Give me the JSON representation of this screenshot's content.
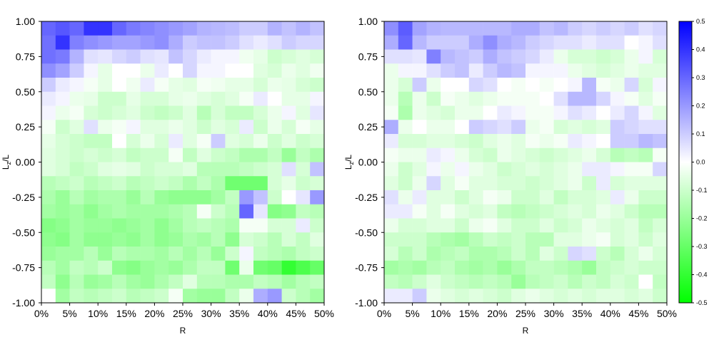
{
  "chart_data": {
    "type": "heatmap",
    "panels": [
      {
        "name": "left",
        "xlabel": "R",
        "ylabel": "L_z/L",
        "xlim": [
          0,
          0.5
        ],
        "ylim": [
          -1,
          1
        ],
        "x_tick_labels": [
          "0%",
          "5%",
          "10%",
          "15%",
          "20%",
          "25%",
          "30%",
          "35%",
          "40%",
          "45%",
          "50%"
        ],
        "y_tick_labels": [
          "1.00",
          "0.75",
          "0.50",
          "0.25",
          "0.00",
          "-0.25",
          "-0.50",
          "-0.75",
          "-1.00"
        ],
        "grid_shape": [
          20,
          20
        ],
        "row_order": "top-to-bottom, L_z/L from 1.00 to -1.00",
        "values": [
          [
            0.3,
            0.33,
            0.3,
            0.4,
            0.4,
            0.3,
            0.26,
            0.24,
            0.22,
            0.2,
            0.18,
            0.15,
            0.14,
            0.13,
            0.1,
            0.1,
            0.15,
            0.12,
            0.15,
            0.12
          ],
          [
            0.28,
            0.4,
            0.25,
            0.22,
            0.2,
            0.18,
            0.18,
            0.2,
            0.22,
            0.16,
            0.1,
            0.12,
            0.12,
            0.1,
            0.06,
            0.04,
            0.06,
            0.1,
            0.08,
            0.08
          ],
          [
            0.28,
            0.26,
            0.15,
            0.06,
            0.05,
            0.08,
            0.1,
            0.06,
            0.05,
            0.12,
            0.08,
            0.04,
            0.02,
            0.02,
            -0.03,
            -0.05,
            -0.1,
            -0.08,
            -0.06,
            -0.08
          ],
          [
            0.22,
            0.18,
            0.1,
            0.02,
            -0.05,
            0.0,
            0.0,
            -0.04,
            0.04,
            0.0,
            0.08,
            0.02,
            0.02,
            0.0,
            0.0,
            -0.06,
            -0.08,
            -0.04,
            -0.06,
            -0.03
          ],
          [
            0.1,
            0.04,
            0.02,
            -0.02,
            -0.05,
            0.0,
            -0.03,
            0.04,
            -0.02,
            -0.05,
            -0.06,
            -0.02,
            -0.03,
            -0.05,
            -0.05,
            -0.08,
            -0.04,
            -0.05,
            -0.08,
            -0.1
          ],
          [
            0.04,
            0.02,
            -0.04,
            -0.05,
            -0.1,
            -0.1,
            -0.05,
            -0.08,
            -0.08,
            -0.05,
            -0.04,
            -0.06,
            -0.08,
            -0.06,
            -0.02,
            0.04,
            0.0,
            -0.05,
            -0.05,
            0.02
          ],
          [
            0.02,
            -0.04,
            -0.02,
            -0.08,
            -0.1,
            -0.08,
            -0.06,
            -0.1,
            -0.12,
            -0.1,
            -0.06,
            -0.14,
            -0.08,
            -0.12,
            -0.12,
            -0.08,
            -0.04,
            0.02,
            -0.06,
            0.05
          ],
          [
            -0.02,
            -0.1,
            -0.06,
            0.06,
            -0.04,
            -0.02,
            0.02,
            -0.06,
            -0.06,
            -0.04,
            -0.06,
            -0.1,
            -0.06,
            -0.08,
            0.04,
            -0.1,
            -0.04,
            -0.08,
            -0.02,
            -0.05
          ],
          [
            -0.05,
            -0.08,
            -0.1,
            -0.12,
            -0.12,
            0.0,
            -0.08,
            -0.04,
            -0.08,
            0.04,
            -0.06,
            -0.02,
            0.1,
            -0.06,
            -0.08,
            -0.04,
            -0.1,
            -0.06,
            -0.1,
            -0.08
          ],
          [
            -0.06,
            -0.08,
            -0.1,
            -0.08,
            -0.1,
            -0.08,
            -0.12,
            -0.1,
            -0.1,
            -0.02,
            -0.12,
            -0.06,
            -0.1,
            -0.12,
            -0.16,
            -0.16,
            -0.12,
            -0.2,
            -0.12,
            -0.16
          ],
          [
            -0.06,
            -0.08,
            -0.12,
            -0.1,
            -0.06,
            -0.05,
            -0.06,
            -0.1,
            -0.08,
            -0.08,
            -0.06,
            -0.14,
            -0.14,
            -0.14,
            -0.12,
            -0.1,
            -0.08,
            0.06,
            -0.08,
            0.12
          ],
          [
            -0.14,
            -0.12,
            -0.1,
            -0.14,
            -0.12,
            -0.1,
            -0.14,
            -0.12,
            -0.1,
            -0.12,
            -0.16,
            -0.12,
            -0.16,
            -0.28,
            -0.28,
            -0.28,
            -0.08,
            -0.05,
            -0.1,
            -0.08
          ],
          [
            -0.16,
            -0.2,
            -0.14,
            -0.18,
            -0.16,
            -0.16,
            -0.2,
            -0.14,
            -0.2,
            -0.22,
            -0.22,
            -0.22,
            -0.18,
            -0.12,
            0.2,
            0.12,
            -0.1,
            0.0,
            0.05,
            0.2
          ],
          [
            -0.18,
            -0.2,
            -0.18,
            -0.22,
            -0.18,
            -0.16,
            -0.18,
            -0.18,
            -0.18,
            -0.16,
            -0.14,
            -0.02,
            -0.1,
            -0.14,
            0.3,
            0.05,
            -0.24,
            -0.22,
            -0.12,
            -0.14
          ],
          [
            -0.24,
            -0.22,
            -0.18,
            -0.2,
            -0.2,
            -0.22,
            -0.2,
            -0.18,
            -0.22,
            -0.18,
            -0.14,
            -0.12,
            -0.14,
            -0.16,
            -0.02,
            -0.02,
            -0.08,
            -0.08,
            0.04,
            -0.1
          ],
          [
            -0.22,
            -0.24,
            -0.18,
            -0.22,
            -0.22,
            -0.2,
            -0.22,
            -0.18,
            -0.22,
            -0.2,
            -0.16,
            -0.18,
            -0.14,
            -0.22,
            -0.08,
            -0.1,
            -0.14,
            -0.08,
            -0.12,
            -0.06
          ],
          [
            -0.2,
            -0.18,
            -0.18,
            -0.14,
            -0.2,
            -0.14,
            -0.16,
            -0.16,
            -0.18,
            -0.14,
            -0.18,
            -0.14,
            -0.2,
            -0.1,
            0.02,
            -0.12,
            -0.14,
            -0.16,
            -0.12,
            -0.1
          ],
          [
            -0.14,
            -0.18,
            -0.12,
            -0.14,
            -0.1,
            -0.22,
            -0.24,
            -0.2,
            -0.18,
            -0.2,
            -0.16,
            -0.12,
            -0.12,
            -0.28,
            -0.04,
            -0.28,
            -0.3,
            -0.4,
            -0.35,
            -0.3
          ],
          [
            -0.12,
            -0.22,
            -0.14,
            -0.2,
            -0.18,
            -0.14,
            -0.18,
            -0.2,
            -0.16,
            -0.12,
            -0.06,
            -0.14,
            -0.14,
            -0.16,
            -0.16,
            -0.12,
            -0.14,
            -0.18,
            -0.14,
            -0.12
          ],
          [
            0.0,
            -0.18,
            -0.12,
            -0.14,
            -0.12,
            -0.1,
            -0.14,
            -0.12,
            -0.1,
            -0.02,
            -0.18,
            -0.2,
            -0.2,
            -0.12,
            -0.04,
            0.16,
            0.2,
            -0.1,
            -0.14,
            -0.18
          ]
        ]
      },
      {
        "name": "right",
        "xlabel": "R",
        "ylabel": "L_z/L",
        "xlim": [
          0,
          0.5
        ],
        "ylim": [
          -1,
          1
        ],
        "x_tick_labels": [
          "0%",
          "5%",
          "10%",
          "15%",
          "20%",
          "25%",
          "30%",
          "35%",
          "40%",
          "45%",
          "50%"
        ],
        "y_tick_labels": [
          "1.00",
          "0.75",
          "0.50",
          "0.25",
          "0.00",
          "-0.25",
          "-0.50",
          "-0.75",
          "-1.00"
        ],
        "grid_shape": [
          20,
          20
        ],
        "row_order": "top-to-bottom, L_z/L from 1.00 to -1.00",
        "values": [
          [
            0.22,
            0.32,
            0.18,
            0.15,
            0.14,
            0.14,
            0.14,
            0.14,
            0.14,
            0.16,
            0.16,
            0.12,
            0.14,
            0.1,
            0.08,
            0.1,
            0.08,
            0.1,
            0.06,
            0.08
          ],
          [
            0.16,
            0.3,
            0.14,
            0.1,
            0.1,
            0.1,
            0.16,
            0.22,
            0.16,
            0.14,
            0.1,
            0.08,
            0.06,
            0.06,
            0.04,
            0.06,
            0.06,
            0.0,
            0.02,
            0.06
          ],
          [
            0.06,
            0.06,
            0.05,
            0.25,
            0.14,
            0.12,
            0.1,
            0.16,
            0.12,
            0.1,
            0.08,
            0.04,
            -0.04,
            -0.08,
            -0.08,
            -0.1,
            -0.08,
            -0.04,
            0.02,
            -0.08
          ],
          [
            -0.04,
            0.02,
            0.02,
            0.06,
            0.1,
            0.12,
            0.04,
            0.1,
            0.14,
            0.12,
            0.02,
            0.02,
            0.02,
            -0.04,
            -0.06,
            -0.08,
            -0.06,
            -0.04,
            -0.06,
            -0.06
          ],
          [
            -0.04,
            -0.08,
            0.1,
            -0.04,
            0.0,
            0.0,
            0.08,
            0.06,
            0.0,
            -0.02,
            0.0,
            -0.02,
            0.0,
            0.02,
            0.14,
            -0.02,
            -0.04,
            0.08,
            -0.08,
            0.02
          ],
          [
            -0.04,
            -0.14,
            -0.04,
            -0.1,
            -0.02,
            -0.04,
            -0.06,
            -0.04,
            -0.02,
            -0.02,
            -0.02,
            0.0,
            0.06,
            0.14,
            0.14,
            0.08,
            0.02,
            -0.02,
            -0.06,
            -0.02
          ],
          [
            -0.02,
            -0.16,
            -0.04,
            -0.06,
            -0.08,
            -0.04,
            -0.04,
            0.0,
            0.04,
            0.02,
            -0.02,
            -0.02,
            0.02,
            0.06,
            0.04,
            0.0,
            0.04,
            0.08,
            0.02,
            -0.06
          ],
          [
            0.16,
            -0.04,
            0.0,
            -0.04,
            -0.04,
            0.0,
            0.1,
            0.08,
            0.06,
            0.1,
            -0.04,
            -0.02,
            -0.08,
            -0.06,
            -0.08,
            -0.06,
            0.1,
            0.08,
            0.06,
            0.06
          ],
          [
            0.04,
            -0.08,
            -0.08,
            -0.06,
            -0.06,
            -0.08,
            -0.1,
            -0.06,
            -0.04,
            -0.06,
            -0.02,
            -0.04,
            -0.02,
            0.04,
            0.02,
            0.0,
            0.1,
            0.1,
            0.14,
            0.12
          ],
          [
            -0.02,
            -0.04,
            -0.04,
            0.04,
            0.02,
            -0.04,
            -0.08,
            -0.1,
            -0.04,
            -0.06,
            -0.08,
            -0.1,
            -0.08,
            -0.06,
            -0.04,
            -0.08,
            -0.14,
            -0.12,
            -0.14,
            -0.02
          ],
          [
            -0.04,
            -0.1,
            -0.06,
            0.02,
            -0.04,
            0.02,
            -0.04,
            -0.06,
            -0.1,
            -0.08,
            -0.06,
            -0.08,
            -0.06,
            -0.04,
            0.04,
            0.04,
            0.02,
            -0.02,
            -0.02,
            0.08
          ],
          [
            -0.06,
            -0.1,
            -0.04,
            0.08,
            -0.06,
            -0.02,
            -0.06,
            -0.06,
            -0.08,
            -0.08,
            -0.1,
            -0.08,
            -0.06,
            -0.04,
            -0.1,
            0.04,
            -0.08,
            -0.06,
            -0.06,
            -0.06
          ],
          [
            0.06,
            -0.04,
            0.04,
            -0.06,
            -0.06,
            -0.1,
            -0.06,
            -0.02,
            -0.04,
            -0.1,
            -0.1,
            -0.06,
            -0.12,
            -0.08,
            -0.08,
            -0.06,
            0.04,
            -0.04,
            -0.1,
            -0.1
          ],
          [
            0.04,
            0.04,
            -0.02,
            -0.06,
            -0.02,
            -0.06,
            -0.08,
            -0.06,
            -0.12,
            -0.14,
            -0.12,
            -0.1,
            -0.08,
            -0.06,
            -0.08,
            -0.04,
            -0.06,
            -0.1,
            -0.14,
            -0.14
          ],
          [
            -0.04,
            -0.08,
            -0.08,
            -0.06,
            -0.06,
            -0.1,
            -0.04,
            -0.02,
            -0.06,
            -0.1,
            -0.1,
            -0.06,
            -0.1,
            -0.08,
            -0.04,
            -0.06,
            -0.08,
            -0.06,
            -0.12,
            -0.08
          ],
          [
            -0.1,
            -0.1,
            -0.1,
            -0.14,
            -0.16,
            -0.18,
            -0.14,
            -0.1,
            -0.12,
            -0.1,
            -0.14,
            -0.14,
            -0.06,
            -0.06,
            -0.04,
            -0.02,
            -0.08,
            -0.06,
            -0.1,
            -0.06
          ],
          [
            -0.08,
            -0.14,
            -0.1,
            -0.16,
            -0.14,
            -0.12,
            -0.16,
            -0.16,
            -0.14,
            -0.1,
            -0.14,
            -0.06,
            -0.1,
            0.08,
            0.06,
            -0.1,
            -0.14,
            -0.08,
            -0.04,
            -0.08
          ],
          [
            -0.18,
            -0.16,
            -0.18,
            -0.14,
            -0.12,
            -0.16,
            -0.18,
            -0.16,
            -0.2,
            -0.16,
            -0.12,
            -0.12,
            -0.14,
            -0.16,
            -0.2,
            -0.12,
            -0.1,
            -0.08,
            -0.1,
            -0.1
          ],
          [
            -0.12,
            -0.14,
            -0.1,
            -0.06,
            -0.1,
            -0.12,
            -0.14,
            -0.12,
            -0.14,
            -0.2,
            -0.14,
            -0.12,
            -0.1,
            -0.14,
            -0.1,
            -0.12,
            -0.08,
            -0.1,
            0.0,
            -0.12
          ],
          [
            0.04,
            0.04,
            0.1,
            -0.04,
            -0.06,
            -0.08,
            -0.06,
            -0.08,
            -0.1,
            -0.06,
            -0.04,
            -0.06,
            -0.08,
            -0.06,
            -0.08,
            -0.06,
            -0.06,
            -0.08,
            -0.06,
            -0.1
          ]
        ]
      }
    ],
    "colorbar": {
      "range": [
        -0.5,
        0.5
      ],
      "tick_labels": [
        "0.5",
        "0.4",
        "0.3",
        "0.2",
        "0.1",
        "0.0",
        "-0.1",
        "-0.2",
        "-0.3",
        "-0.4",
        "-0.5"
      ],
      "colors": {
        "positive": "#0000ff",
        "zero": "#ffffff",
        "negative": "#00ff00"
      }
    }
  }
}
